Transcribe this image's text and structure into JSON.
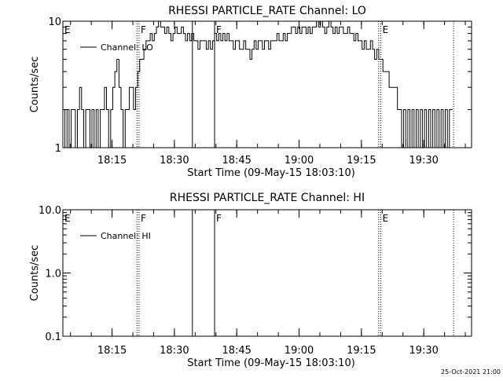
{
  "footer_timestamp": "25-Oct-2021 21:00",
  "chart_data": [
    {
      "type": "line",
      "title": "RHESSI PARTICLE_RATE Channel: LO",
      "xlabel": "Start Time (09-May-15 18:03:10)",
      "ylabel": "Counts/sec",
      "y_scale": "log",
      "ylim": [
        1,
        10
      ],
      "y_ticks": [
        {
          "value": 1,
          "label": "1"
        },
        {
          "value": 10,
          "label": "10"
        }
      ],
      "xlim": [
        "18:03:10",
        "19:41:30"
      ],
      "x_ticks": [
        {
          "value": "18:15",
          "label": "18:15"
        },
        {
          "value": "18:30",
          "label": "18:30"
        },
        {
          "value": "18:45",
          "label": "18:45"
        },
        {
          "value": "19:00",
          "label": "19:00"
        },
        {
          "value": "19:15",
          "label": "19:15"
        },
        {
          "value": "19:30",
          "label": "19:30"
        }
      ],
      "legend": {
        "placement": "top-left",
        "label": "Channel: LO"
      },
      "color": "#000000",
      "markers": [
        {
          "time": "18:03:10",
          "style": "none",
          "label": "E"
        },
        {
          "time": "18:21:00",
          "style": "dotted",
          "label": ""
        },
        {
          "time": "18:21:30",
          "style": "dotted",
          "label": "F"
        },
        {
          "time": "18:34:20",
          "style": "solid",
          "label": ""
        },
        {
          "time": "18:39:40",
          "style": "solid",
          "label": "F"
        },
        {
          "time": "19:19:10",
          "style": "dotted",
          "label": ""
        },
        {
          "time": "19:19:40",
          "style": "dotted",
          "label": "E"
        },
        {
          "time": "19:37:10",
          "style": "dotted",
          "label": ""
        }
      ],
      "series": [
        {
          "name": "Channel: LO",
          "points": [
            [
              "18:03:10",
              2
            ],
            [
              "18:03:40",
              1
            ],
            [
              "18:04:10",
              2
            ],
            [
              "18:04:40",
              1
            ],
            [
              "18:05:10",
              2
            ],
            [
              "18:05:40",
              2
            ],
            [
              "18:06:10",
              1
            ],
            [
              "18:06:40",
              2
            ],
            [
              "18:07:10",
              3
            ],
            [
              "18:07:40",
              2
            ],
            [
              "18:08:10",
              1
            ],
            [
              "18:08:40",
              2
            ],
            [
              "18:09:10",
              2
            ],
            [
              "18:09:40",
              1
            ],
            [
              "18:10:10",
              2
            ],
            [
              "18:10:40",
              1
            ],
            [
              "18:11:10",
              2
            ],
            [
              "18:11:40",
              1
            ],
            [
              "18:12:10",
              2
            ],
            [
              "18:12:40",
              2
            ],
            [
              "18:13:10",
              3
            ],
            [
              "18:13:40",
              2
            ],
            [
              "18:14:10",
              1
            ],
            [
              "18:14:40",
              2
            ],
            [
              "18:15:10",
              3
            ],
            [
              "18:15:40",
              4
            ],
            [
              "18:16:10",
              5
            ],
            [
              "18:16:40",
              3
            ],
            [
              "18:17:10",
              2
            ],
            [
              "18:17:40",
              1
            ],
            [
              "18:18:10",
              2
            ],
            [
              "18:18:40",
              2
            ],
            [
              "18:19:10",
              3
            ],
            [
              "18:19:40",
              3
            ],
            [
              "18:20:10",
              2
            ],
            [
              "18:20:40",
              3
            ],
            [
              "18:21:10",
              4
            ],
            [
              "18:21:40",
              5
            ],
            [
              "18:22:10",
              5
            ],
            [
              "18:22:40",
              6
            ],
            [
              "18:23:10",
              7
            ],
            [
              "18:23:40",
              7
            ],
            [
              "18:24:10",
              8
            ],
            [
              "18:24:40",
              7
            ],
            [
              "18:25:10",
              8
            ],
            [
              "18:25:40",
              9
            ],
            [
              "18:26:10",
              10
            ],
            [
              "18:26:40",
              9
            ],
            [
              "18:27:10",
              9
            ],
            [
              "18:27:40",
              8
            ],
            [
              "18:28:10",
              9
            ],
            [
              "18:28:40",
              8
            ],
            [
              "18:29:10",
              7
            ],
            [
              "18:29:40",
              8
            ],
            [
              "18:30:10",
              9
            ],
            [
              "18:30:40",
              8
            ],
            [
              "18:31:10",
              8
            ],
            [
              "18:31:40",
              9
            ],
            [
              "18:32:10",
              8
            ],
            [
              "18:32:40",
              7
            ],
            [
              "18:33:10",
              8
            ],
            [
              "18:33:40",
              7
            ],
            [
              "18:34:10",
              8
            ],
            [
              "18:34:40",
              7
            ],
            [
              "18:35:10",
              7
            ],
            [
              "18:35:40",
              6
            ],
            [
              "18:36:10",
              7
            ],
            [
              "18:36:40",
              7
            ],
            [
              "18:37:10",
              7
            ],
            [
              "18:37:40",
              6
            ],
            [
              "18:38:10",
              7
            ],
            [
              "18:38:40",
              6
            ],
            [
              "18:39:10",
              7
            ],
            [
              "18:39:40",
              8
            ],
            [
              "18:40:10",
              7
            ],
            [
              "18:40:40",
              8
            ],
            [
              "18:41:10",
              7
            ],
            [
              "18:41:40",
              8
            ],
            [
              "18:42:10",
              7
            ],
            [
              "18:42:40",
              8
            ],
            [
              "18:43:10",
              7
            ],
            [
              "18:43:40",
              7
            ],
            [
              "18:44:10",
              6
            ],
            [
              "18:44:40",
              7
            ],
            [
              "18:45:10",
              7
            ],
            [
              "18:45:40",
              6
            ],
            [
              "18:46:10",
              6
            ],
            [
              "18:46:40",
              7
            ],
            [
              "18:47:10",
              6
            ],
            [
              "18:47:40",
              6
            ],
            [
              "18:48:10",
              5
            ],
            [
              "18:48:40",
              6
            ],
            [
              "18:49:10",
              7
            ],
            [
              "18:49:40",
              6
            ],
            [
              "18:50:10",
              7
            ],
            [
              "18:50:40",
              7
            ],
            [
              "18:51:10",
              6
            ],
            [
              "18:51:40",
              7
            ],
            [
              "18:52:10",
              7
            ],
            [
              "18:52:40",
              6
            ],
            [
              "18:53:10",
              7
            ],
            [
              "18:53:40",
              7
            ],
            [
              "18:54:10",
              7
            ],
            [
              "18:54:40",
              8
            ],
            [
              "18:55:10",
              7
            ],
            [
              "18:55:40",
              7
            ],
            [
              "18:56:10",
              8
            ],
            [
              "18:56:40",
              7
            ],
            [
              "18:57:10",
              8
            ],
            [
              "18:57:40",
              8
            ],
            [
              "18:58:10",
              9
            ],
            [
              "18:58:40",
              9
            ],
            [
              "18:59:10",
              8
            ],
            [
              "18:59:40",
              9
            ],
            [
              "19:00:10",
              8
            ],
            [
              "19:00:40",
              9
            ],
            [
              "19:01:10",
              9
            ],
            [
              "19:01:40",
              8
            ],
            [
              "19:02:10",
              9
            ],
            [
              "19:02:40",
              8
            ],
            [
              "19:03:10",
              9
            ],
            [
              "19:03:40",
              9
            ],
            [
              "19:04:10",
              10
            ],
            [
              "19:04:40",
              9
            ],
            [
              "19:05:10",
              10
            ],
            [
              "19:05:40",
              9
            ],
            [
              "19:06:10",
              8
            ],
            [
              "19:06:40",
              9
            ],
            [
              "19:07:10",
              10
            ],
            [
              "19:07:40",
              9
            ],
            [
              "19:08:10",
              8
            ],
            [
              "19:08:40",
              9
            ],
            [
              "19:09:10",
              8
            ],
            [
              "19:09:40",
              9
            ],
            [
              "19:10:10",
              9
            ],
            [
              "19:10:40",
              8
            ],
            [
              "19:11:10",
              8
            ],
            [
              "19:11:40",
              9
            ],
            [
              "19:12:10",
              8
            ],
            [
              "19:12:40",
              8
            ],
            [
              "19:13:10",
              7
            ],
            [
              "19:13:40",
              8
            ],
            [
              "19:14:10",
              7
            ],
            [
              "19:14:40",
              7
            ],
            [
              "19:15:10",
              6
            ],
            [
              "19:15:40",
              7
            ],
            [
              "19:16:10",
              6
            ],
            [
              "19:16:40",
              6
            ],
            [
              "19:17:10",
              7
            ],
            [
              "19:17:40",
              6
            ],
            [
              "19:18:10",
              5
            ],
            [
              "19:18:40",
              6
            ],
            [
              "19:19:10",
              5
            ],
            [
              "19:19:40",
              5
            ],
            [
              "19:20:10",
              4
            ],
            [
              "19:20:40",
              4
            ],
            [
              "19:21:10",
              4
            ],
            [
              "19:21:40",
              3
            ],
            [
              "19:22:10",
              3
            ],
            [
              "19:22:40",
              3
            ],
            [
              "19:23:10",
              3
            ],
            [
              "19:23:40",
              2
            ],
            [
              "19:24:10",
              2
            ],
            [
              "19:24:40",
              1
            ],
            [
              "19:25:10",
              2
            ],
            [
              "19:25:40",
              1
            ],
            [
              "19:26:10",
              2
            ],
            [
              "19:26:40",
              1
            ],
            [
              "19:27:10",
              2
            ],
            [
              "19:27:40",
              1
            ],
            [
              "19:28:10",
              2
            ],
            [
              "19:28:40",
              1
            ],
            [
              "19:29:10",
              2
            ],
            [
              "19:29:40",
              1
            ],
            [
              "19:30:10",
              2
            ],
            [
              "19:30:40",
              1
            ],
            [
              "19:31:10",
              2
            ],
            [
              "19:31:40",
              1
            ],
            [
              "19:32:10",
              2
            ],
            [
              "19:32:40",
              1
            ],
            [
              "19:33:10",
              2
            ],
            [
              "19:33:40",
              1
            ],
            [
              "19:34:10",
              2
            ],
            [
              "19:34:40",
              1
            ],
            [
              "19:35:10",
              2
            ],
            [
              "19:35:40",
              1
            ],
            [
              "19:36:10",
              2
            ]
          ]
        }
      ]
    },
    {
      "type": "line",
      "title": "RHESSI PARTICLE_RATE Channel: HI",
      "xlabel": "Start Time (09-May-15 18:03:10)",
      "ylabel": "Counts/sec",
      "y_scale": "log",
      "ylim": [
        0.1,
        10
      ],
      "y_ticks": [
        {
          "value": 0.1,
          "label": "0.1"
        },
        {
          "value": 1,
          "label": "1.0"
        },
        {
          "value": 10,
          "label": "10.0"
        }
      ],
      "xlim": [
        "18:03:10",
        "19:41:30"
      ],
      "x_ticks": [
        {
          "value": "18:15",
          "label": "18:15"
        },
        {
          "value": "18:30",
          "label": "18:30"
        },
        {
          "value": "18:45",
          "label": "18:45"
        },
        {
          "value": "19:00",
          "label": "19:00"
        },
        {
          "value": "19:15",
          "label": "19:15"
        },
        {
          "value": "19:30",
          "label": "19:30"
        }
      ],
      "legend": {
        "placement": "top-left",
        "label": "Channel: HI"
      },
      "color": "#000000",
      "markers": [
        {
          "time": "18:03:10",
          "style": "none",
          "label": "E"
        },
        {
          "time": "18:21:00",
          "style": "dotted",
          "label": ""
        },
        {
          "time": "18:21:30",
          "style": "dotted",
          "label": "F"
        },
        {
          "time": "18:34:20",
          "style": "solid",
          "label": ""
        },
        {
          "time": "18:39:40",
          "style": "solid",
          "label": "F"
        },
        {
          "time": "19:19:10",
          "style": "dotted",
          "label": ""
        },
        {
          "time": "19:19:40",
          "style": "dotted",
          "label": "E"
        },
        {
          "time": "19:37:10",
          "style": "dotted",
          "label": ""
        }
      ],
      "series": [
        {
          "name": "Channel: HI",
          "points": []
        }
      ]
    }
  ]
}
